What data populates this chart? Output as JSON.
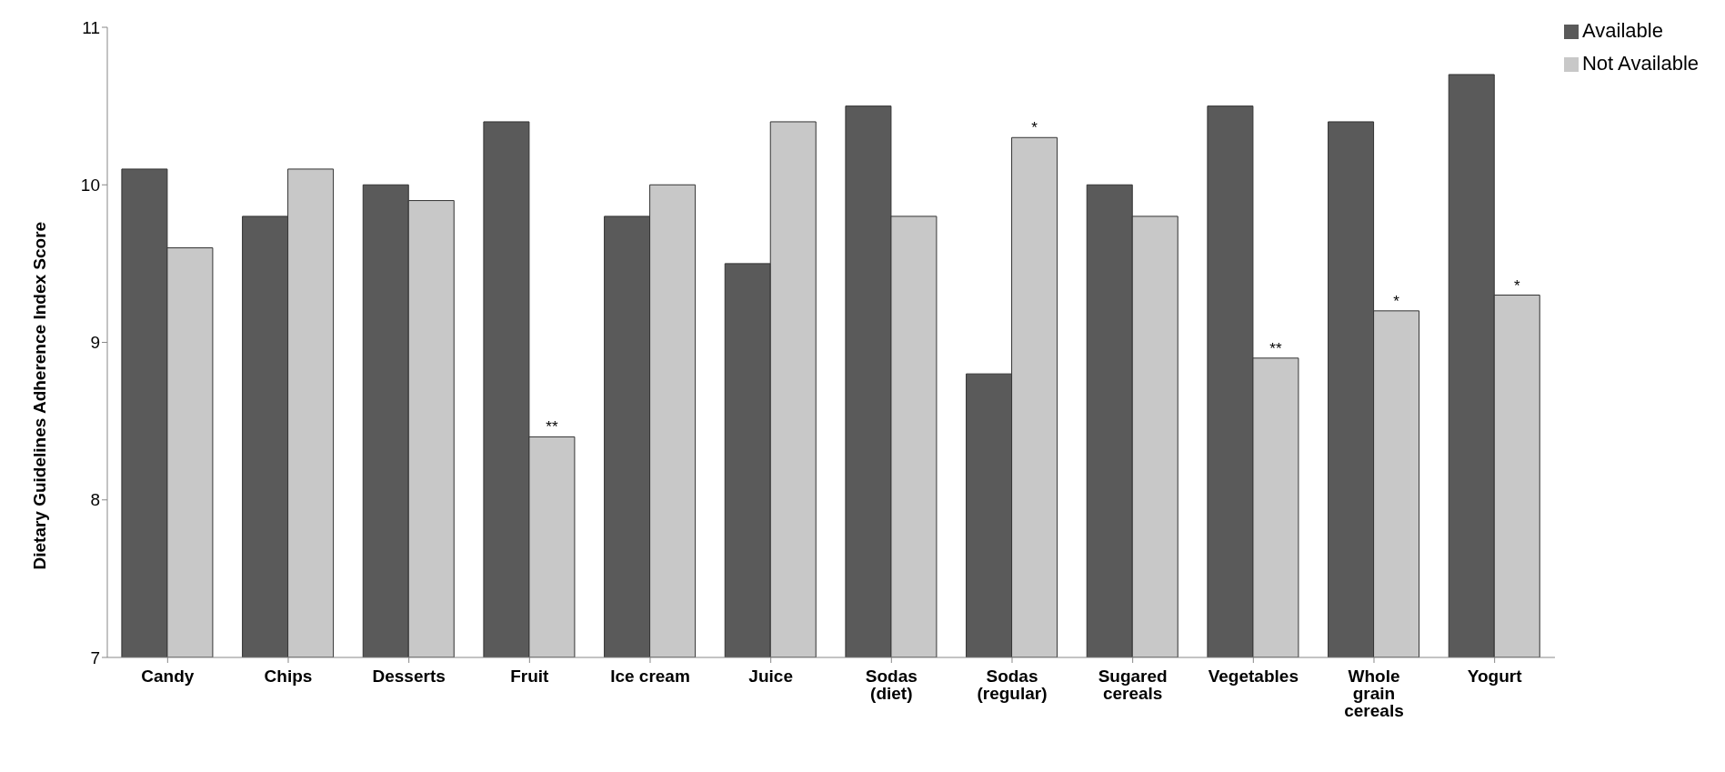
{
  "chart_data": {
    "type": "bar",
    "ylabel": "Dietary Guidelines Adherence Index Score",
    "categories": [
      "Candy",
      "Chips",
      "Desserts",
      "Fruit",
      "Ice cream",
      "Juice",
      "Sodas (diet)",
      "Sodas (regular)",
      "Sugared cereals",
      "Vegetables",
      "Whole grain cereals",
      "Yogurt"
    ],
    "series": [
      {
        "name": "Available",
        "color": "#5a5a5a",
        "values": [
          10.1,
          9.8,
          10.0,
          10.4,
          9.8,
          9.5,
          10.5,
          8.8,
          10.0,
          10.5,
          10.4,
          10.7
        ]
      },
      {
        "name": "Not Available",
        "color": "#c8c8c8",
        "values": [
          9.6,
          10.1,
          9.9,
          8.4,
          10.0,
          10.4,
          9.8,
          10.3,
          9.8,
          8.9,
          9.2,
          9.3
        ]
      }
    ],
    "ylim": [
      7,
      11
    ],
    "yticks": [
      7,
      8,
      9,
      10,
      11
    ],
    "grid": false,
    "legend": "top right",
    "annotations": [
      {
        "text": "**",
        "x": "Fruit",
        "y": 8.4
      },
      {
        "text": "*",
        "x": "Sodas (regular)",
        "y": 10.3
      },
      {
        "text": "**",
        "x": "Vegetables",
        "y": 8.9
      },
      {
        "text": "*",
        "x": "Whole grain cereals",
        "y": 9.2
      },
      {
        "text": "*",
        "x": "Yogurt",
        "y": 9.3
      }
    ]
  }
}
